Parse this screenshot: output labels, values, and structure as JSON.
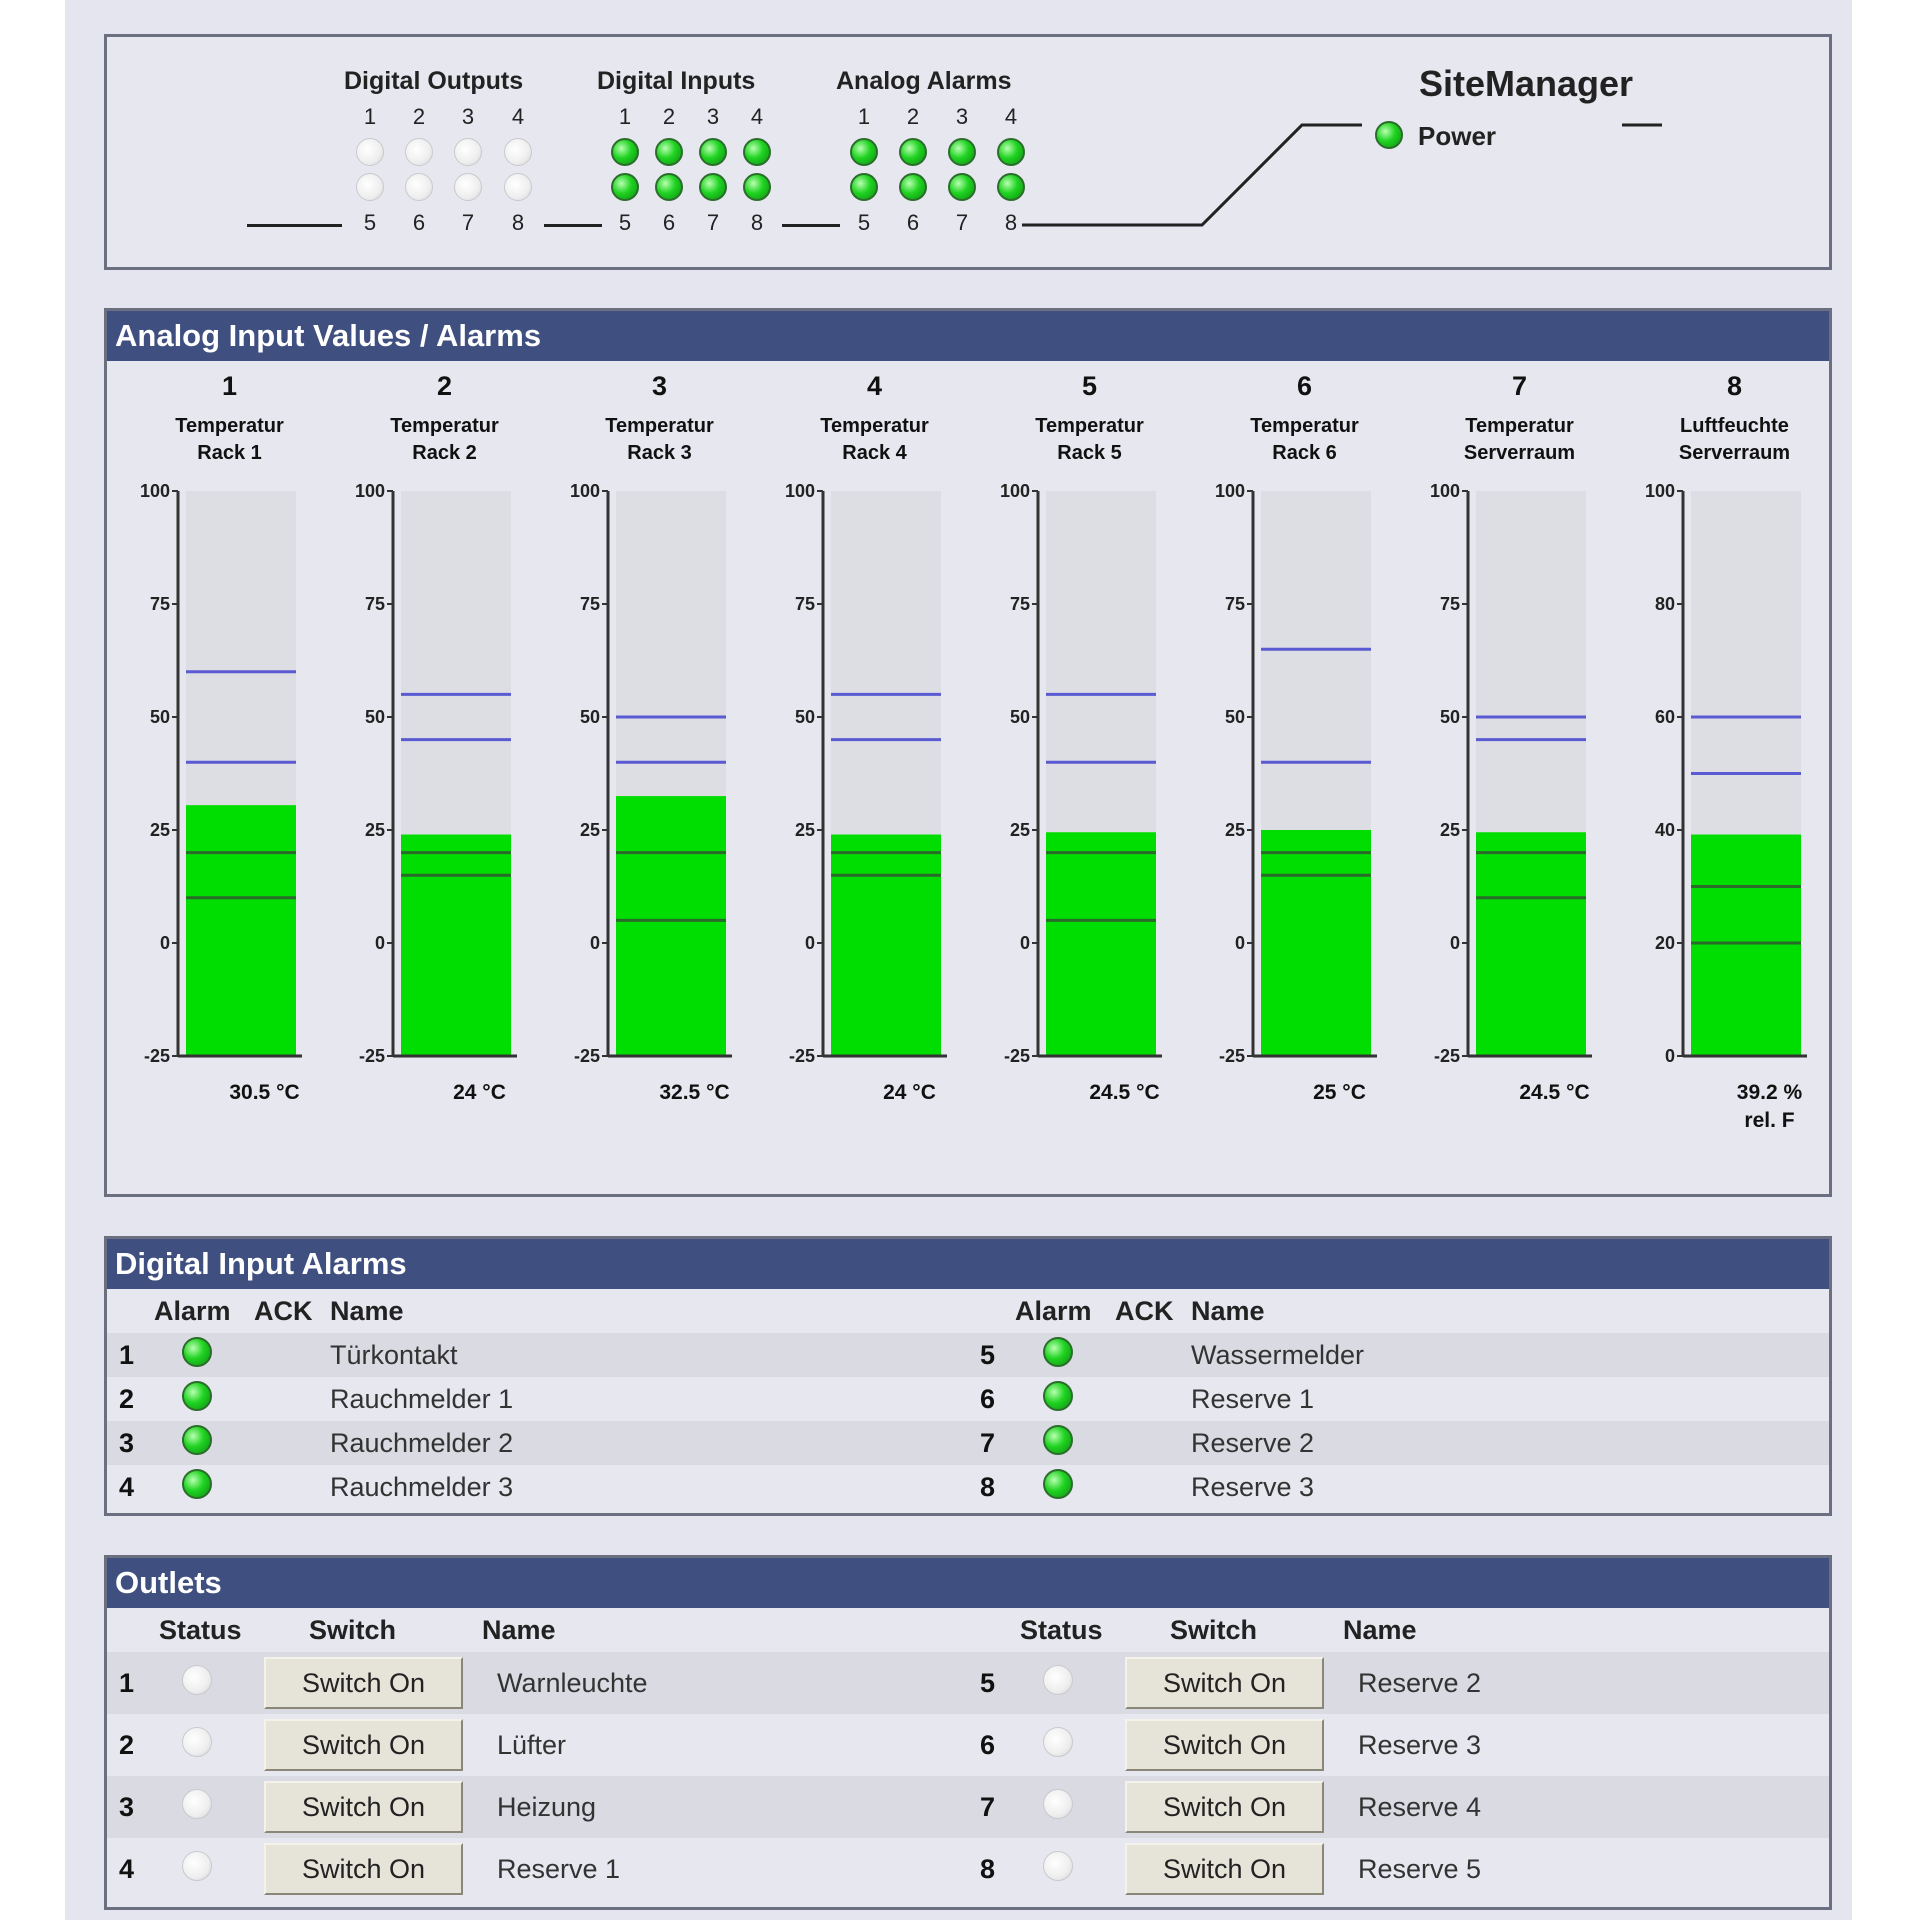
{
  "status": {
    "digital_outputs": {
      "title": "Digital Outputs",
      "top_numbers": [
        "1",
        "2",
        "3",
        "4"
      ],
      "bottom_numbers": [
        "5",
        "6",
        "7",
        "8"
      ],
      "states": [
        false,
        false,
        false,
        false,
        false,
        false,
        false,
        false
      ]
    },
    "digital_inputs": {
      "title": "Digital Inputs",
      "top_numbers": [
        "1",
        "2",
        "3",
        "4"
      ],
      "bottom_numbers": [
        "5",
        "6",
        "7",
        "8"
      ],
      "states": [
        true,
        true,
        true,
        true,
        true,
        true,
        true,
        true
      ]
    },
    "analog_alarms": {
      "title": "Analog Alarms",
      "top_numbers": [
        "1",
        "2",
        "3",
        "4"
      ],
      "bottom_numbers": [
        "5",
        "6",
        "7",
        "8"
      ],
      "states": [
        true,
        true,
        true,
        true,
        true,
        true,
        true,
        true
      ]
    },
    "site_manager": "SiteManager",
    "power_label": "Power",
    "power_on": true
  },
  "analog": {
    "title": "Analog Input Values / Alarms",
    "channels": [
      {
        "num": "1",
        "label1": "Temperatur",
        "label2": "Rack 1",
        "ticks": [
          "100",
          "75",
          "50",
          "25",
          "0",
          "-25"
        ],
        "min": -25,
        "max": 100,
        "value": 30.5,
        "value_text": "30.5 °C",
        "value_text2": "",
        "upper": [
          60,
          40
        ],
        "lower": [
          20,
          10
        ]
      },
      {
        "num": "2",
        "label1": "Temperatur",
        "label2": "Rack 2",
        "ticks": [
          "100",
          "75",
          "50",
          "25",
          "0",
          "-25"
        ],
        "min": -25,
        "max": 100,
        "value": 24,
        "value_text": "24 °C",
        "value_text2": "",
        "upper": [
          55,
          45
        ],
        "lower": [
          20,
          15
        ]
      },
      {
        "num": "3",
        "label1": "Temperatur",
        "label2": "Rack 3",
        "ticks": [
          "100",
          "75",
          "50",
          "25",
          "0",
          "-25"
        ],
        "min": -25,
        "max": 100,
        "value": 32.5,
        "value_text": "32.5 °C",
        "value_text2": "",
        "upper": [
          50,
          40
        ],
        "lower": [
          20,
          5
        ]
      },
      {
        "num": "4",
        "label1": "Temperatur",
        "label2": "Rack 4",
        "ticks": [
          "100",
          "75",
          "50",
          "25",
          "0",
          "-25"
        ],
        "min": -25,
        "max": 100,
        "value": 24,
        "value_text": "24 °C",
        "value_text2": "",
        "upper": [
          55,
          45
        ],
        "lower": [
          20,
          15
        ]
      },
      {
        "num": "5",
        "label1": "Temperatur",
        "label2": "Rack 5",
        "ticks": [
          "100",
          "75",
          "50",
          "25",
          "0",
          "-25"
        ],
        "min": -25,
        "max": 100,
        "value": 24.5,
        "value_text": "24.5 °C",
        "value_text2": "",
        "upper": [
          55,
          40
        ],
        "lower": [
          20,
          5
        ]
      },
      {
        "num": "6",
        "label1": "Temperatur",
        "label2": "Rack 6",
        "ticks": [
          "100",
          "75",
          "50",
          "25",
          "0",
          "-25"
        ],
        "min": -25,
        "max": 100,
        "value": 25,
        "value_text": "25 °C",
        "value_text2": "",
        "upper": [
          65,
          40
        ],
        "lower": [
          20,
          15
        ]
      },
      {
        "num": "7",
        "label1": "Temperatur",
        "label2": "Serverraum",
        "ticks": [
          "100",
          "75",
          "50",
          "25",
          "0",
          "-25"
        ],
        "min": -25,
        "max": 100,
        "value": 24.5,
        "value_text": "24.5 °C",
        "value_text2": "",
        "upper": [
          50,
          45
        ],
        "lower": [
          20,
          10
        ]
      },
      {
        "num": "8",
        "label1": "Luftfeuchte",
        "label2": "Serverraum",
        "ticks": [
          "100",
          "80",
          "60",
          "40",
          "20",
          "0"
        ],
        "min": 0,
        "max": 100,
        "value": 39.2,
        "value_text": "39.2 %",
        "value_text2": "rel. F",
        "upper": [
          60,
          50
        ],
        "lower": [
          30,
          20
        ]
      }
    ]
  },
  "digital_alarms": {
    "title": "Digital Input Alarms",
    "headers": {
      "alarm": "Alarm",
      "ack": "ACK",
      "name": "Name"
    },
    "rows": [
      {
        "left": {
          "num": "1",
          "name": "Türkontakt",
          "alarm_ok": true
        },
        "right": {
          "num": "5",
          "name": "Wassermelder",
          "alarm_ok": true
        }
      },
      {
        "left": {
          "num": "2",
          "name": "Rauchmelder 1",
          "alarm_ok": true
        },
        "right": {
          "num": "6",
          "name": "Reserve 1",
          "alarm_ok": true
        }
      },
      {
        "left": {
          "num": "3",
          "name": "Rauchmelder 2",
          "alarm_ok": true
        },
        "right": {
          "num": "7",
          "name": "Reserve 2",
          "alarm_ok": true
        }
      },
      {
        "left": {
          "num": "4",
          "name": "Rauchmelder 3",
          "alarm_ok": true
        },
        "right": {
          "num": "8",
          "name": "Reserve 3",
          "alarm_ok": true
        }
      }
    ]
  },
  "outlets": {
    "title": "Outlets",
    "headers": {
      "status": "Status",
      "switch": "Switch",
      "name": "Name"
    },
    "rows": [
      {
        "left": {
          "num": "1",
          "name": "Warnleuchte",
          "button": "Switch On",
          "on": false
        },
        "right": {
          "num": "5",
          "name": "Reserve 2",
          "button": "Switch On",
          "on": false
        }
      },
      {
        "left": {
          "num": "2",
          "name": "Lüfter",
          "button": "Switch On",
          "on": false
        },
        "right": {
          "num": "6",
          "name": "Reserve 3",
          "button": "Switch On",
          "on": false
        }
      },
      {
        "left": {
          "num": "3",
          "name": "Heizung",
          "button": "Switch On",
          "on": false
        },
        "right": {
          "num": "7",
          "name": "Reserve 4",
          "button": "Switch On",
          "on": false
        }
      },
      {
        "left": {
          "num": "4",
          "name": "Reserve 1",
          "button": "Switch On",
          "on": false
        },
        "right": {
          "num": "8",
          "name": "Reserve 5",
          "button": "Switch On",
          "on": false
        }
      }
    ]
  },
  "colors": {
    "header_bg": "#3f4f7f",
    "bar_fill": "#00dd00",
    "bar_bg": "#dddde4",
    "threshold_upper": "#5a5ad2",
    "threshold_lower": "#2a6a2a",
    "led_on": "#1fd321"
  }
}
